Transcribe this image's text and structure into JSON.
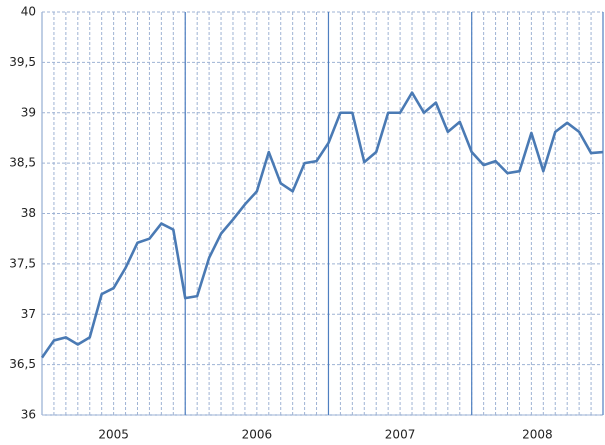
{
  "chart_data": {
    "type": "line",
    "year_labels": [
      "2005",
      "2006",
      "2007",
      "2008"
    ],
    "series": [
      {
        "color": "#4a7ab4",
        "values": [
          36.57,
          36.74,
          36.77,
          36.7,
          36.77,
          37.2,
          37.26,
          37.46,
          37.71,
          37.75,
          37.9,
          37.84,
          37.16,
          37.18,
          37.56,
          37.8,
          37.94,
          38.09,
          38.22,
          38.61,
          38.3,
          38.22,
          38.5,
          38.52,
          38.7,
          39.0,
          39.0,
          38.51,
          38.61,
          39.0,
          39.0,
          39.2,
          39.0,
          39.1,
          38.81,
          38.91,
          38.61,
          38.48,
          38.52,
          38.4,
          38.42,
          38.8,
          38.42,
          38.81,
          38.9,
          38.81,
          38.6,
          38.61
        ]
      }
    ],
    "ylim": [
      36,
      40
    ],
    "yticks": [
      36,
      {
        "value": 36.5,
        "label": "36,5"
      },
      37,
      {
        "value": 37.5,
        "label": "37,5"
      },
      38,
      {
        "value": 38.5,
        "label": "38,5"
      },
      39,
      {
        "value": 39.5,
        "label": "39,5"
      },
      40
    ],
    "grid": true
  }
}
